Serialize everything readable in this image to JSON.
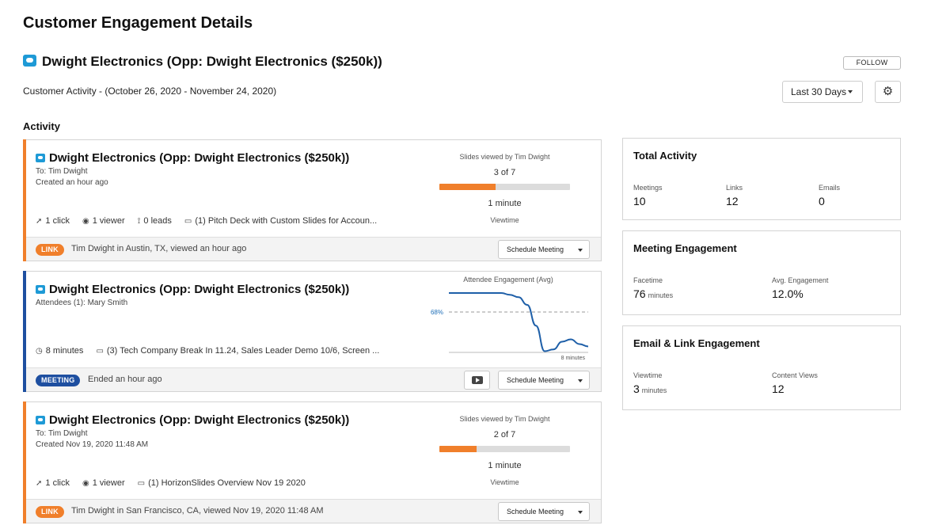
{
  "page": {
    "title": "Customer Engagement Details",
    "opportunity_title": "Dwight Electronics (Opp: Dwight Electronics ($250k))",
    "follow_label": "FOLLOW",
    "activity_range": "Customer Activity - (October 26, 2020 - November 24, 2020)",
    "range_select": "Last 30 Days",
    "section_label": "Activity"
  },
  "colors": {
    "accent_orange": "#f07f2b",
    "accent_blue": "#1e4fa0",
    "brand_icon": "#1e9ad6"
  },
  "cards": [
    {
      "type": "link",
      "title": "Dwight Electronics (Opp: Dwight Electronics ($250k))",
      "sub1": "To: Tim Dwight",
      "sub2": "Created an hour ago",
      "clicks": "1 click",
      "viewers": "1 viewer",
      "leads": "0 leads",
      "content": "(1) Pitch Deck with Custom Slides for Accoun...",
      "slides_label": "Slides viewed by Tim Dwight",
      "slides_count": "3 of 7",
      "slides_fraction": 0.4286,
      "viewtime": "1 minute",
      "viewtime_label": "Viewtime",
      "badge": "LINK",
      "footer": "Tim Dwight in Austin, TX, viewed an hour ago",
      "schedule": "Schedule Meeting"
    },
    {
      "type": "meeting",
      "title": "Dwight Electronics (Opp: Dwight Electronics ($250k))",
      "sub1": "Attendees (1): Mary Smith",
      "duration": "8 minutes",
      "content": "(3) Tech Company Break In 11.24, Sales Leader Demo 10/6, Screen ...",
      "chart_title": "Attendee Engagement (Avg)",
      "avg_label": "68%",
      "x_end_label": "8 minutes",
      "badge": "MEETING",
      "footer": "Ended an hour ago",
      "schedule": "Schedule Meeting"
    },
    {
      "type": "link",
      "title": "Dwight Electronics (Opp: Dwight Electronics ($250k))",
      "sub1": "To: Tim Dwight",
      "sub2": "Created Nov 19, 2020 11:48 AM",
      "clicks": "1 click",
      "viewers": "1 viewer",
      "content": "(1) HorizonSlides Overview Nov 19 2020",
      "slides_label": "Slides viewed by Tim Dwight",
      "slides_count": "2 of 7",
      "slides_fraction": 0.2857,
      "viewtime": "1 minute",
      "viewtime_label": "Viewtime",
      "badge": "LINK",
      "footer": "Tim Dwight in San Francisco, CA, viewed Nov 19, 2020 11:48 AM",
      "schedule": "Schedule Meeting"
    }
  ],
  "panels": {
    "total": {
      "title": "Total Activity",
      "meetings_label": "Meetings",
      "meetings": "10",
      "links_label": "Links",
      "links": "12",
      "emails_label": "Emails",
      "emails": "0"
    },
    "meeting": {
      "title": "Meeting Engagement",
      "facetime_label": "Facetime",
      "facetime": "76",
      "facetime_unit": "minutes",
      "avg_label": "Avg. Engagement",
      "avg": "12.0%"
    },
    "email": {
      "title": "Email & Link Engagement",
      "viewtime_label": "Viewtime",
      "viewtime": "3",
      "viewtime_unit": "minutes",
      "views_label": "Content Views",
      "views": "12"
    }
  },
  "chart_data": {
    "type": "line",
    "title": "Attendee Engagement (Avg)",
    "xlabel": "",
    "ylabel": "",
    "x": [
      0,
      1,
      2,
      3,
      3.5,
      4,
      4.5,
      5,
      5.5,
      6,
      6.5,
      7,
      7.5,
      8
    ],
    "series": [
      {
        "values": [
          100,
          100,
          100,
          100,
          97,
          93,
          80,
          45,
          2,
          5,
          18,
          22,
          14,
          10
        ]
      }
    ],
    "reference_line": {
      "value": 68,
      "label": "68%"
    },
    "ylim": [
      0,
      100
    ],
    "xlim": [
      0,
      8
    ],
    "x_end_label": "8 minutes"
  }
}
